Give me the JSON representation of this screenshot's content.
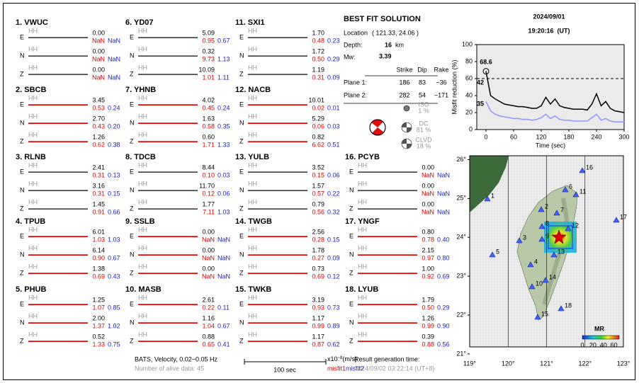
{
  "channel": "HH",
  "components": [
    "E",
    "N",
    "Z"
  ],
  "stations": [
    {
      "label": "1. VWUC",
      "rows": [
        [
          "0.00",
          "NaN",
          "NaN"
        ],
        [
          "0.00",
          "NaN",
          "NaN"
        ],
        [
          "0.00",
          "NaN",
          "NaN"
        ]
      ]
    },
    {
      "label": "2. SBCB",
      "rows": [
        [
          "3.45",
          "0.53",
          "0.24"
        ],
        [
          "2.70",
          "0.43",
          "0.20"
        ],
        [
          "1.26",
          "0.62",
          "0.38"
        ]
      ]
    },
    {
      "label": "3. RLNB",
      "rows": [
        [
          "2.41",
          "0.31",
          "0.13"
        ],
        [
          "3.16",
          "0.31",
          "0.15"
        ],
        [
          "1.45",
          "0.91",
          "0.66"
        ]
      ]
    },
    {
      "label": "4. TPUB",
      "rows": [
        [
          "6.01",
          "1.03",
          "1.03"
        ],
        [
          "6.14",
          "0.90",
          "0.67"
        ],
        [
          "1.38",
          "0.69",
          "0.43"
        ]
      ]
    },
    {
      "label": "5. PHUB",
      "rows": [
        [
          "1.25",
          "1.07",
          "0.85"
        ],
        [
          "2.00",
          "1.37",
          "1.02"
        ],
        [
          "0.52",
          "1.33",
          "0.75"
        ]
      ]
    },
    {
      "label": "6. YD07",
      "rows": [
        [
          "5.09",
          "0.95",
          "0.67"
        ],
        [
          "0.32",
          "9.73",
          "1.13"
        ],
        [
          "10.09",
          "1.01",
          "1.11"
        ]
      ]
    },
    {
      "label": "7. YHNB",
      "rows": [
        [
          "4.02",
          "0.45",
          "0.24"
        ],
        [
          "1.63",
          "0.58",
          "0.35"
        ],
        [
          "0.60",
          "1.71",
          "1.33"
        ]
      ]
    },
    {
      "label": "8. TDCB",
      "rows": [
        [
          "8.44",
          "0.10",
          "0.03"
        ],
        [
          "11.70",
          "0.12",
          "0.06"
        ],
        [
          "1.77",
          "7.11",
          "1.03"
        ]
      ]
    },
    {
      "label": "9. SSLB",
      "rows": [
        [
          "0.00",
          "NaN",
          "NaN"
        ],
        [
          "0.00",
          "NaN",
          "NaN"
        ],
        [
          "0.00",
          "NaN",
          "NaN"
        ]
      ]
    },
    {
      "label": "10. MASB",
      "rows": [
        [
          "2.61",
          "0.22",
          "0.11"
        ],
        [
          "1.16",
          "1.04",
          "0.67"
        ],
        [
          "0.88",
          "0.65",
          "0.41"
        ]
      ]
    },
    {
      "label": "11. SXI1",
      "rows": [
        [
          "1.70",
          "0.48",
          "0.23"
        ],
        [
          "1.72",
          "0.50",
          "0.29"
        ],
        [
          "1.19",
          "0.31",
          "0.09"
        ]
      ]
    },
    {
      "label": "12. NACB",
      "rows": [
        [
          "10.01",
          "0.02",
          "0.01"
        ],
        [
          "5.29",
          "0.06",
          "0.03"
        ],
        [
          "0.82",
          "6.62",
          "0.51"
        ]
      ]
    },
    {
      "label": "13. YULB",
      "rows": [
        [
          "3.52",
          "0.15",
          "0.06"
        ],
        [
          "1.57",
          "0.57",
          "0.22"
        ],
        [
          "0.79",
          "0.56",
          "0.32"
        ]
      ]
    },
    {
      "label": "14. TWGB",
      "rows": [
        [
          "2.56",
          "0.28",
          "0.15"
        ],
        [
          "1.78",
          "0.27",
          "0.09"
        ],
        [
          "0.73",
          "0.69",
          "0.12"
        ]
      ]
    },
    {
      "label": "15. TWKB",
      "rows": [
        [
          "3.19",
          "0.93",
          "0.73"
        ],
        [
          "1.17",
          "0.99",
          "0.89"
        ],
        [
          "1.17",
          "0.87",
          "0.62"
        ]
      ]
    },
    {
      "label": "16. PCYB",
      "rows": [
        [
          "0.00",
          "NaN",
          "NaN"
        ],
        [
          "0.00",
          "NaN",
          "NaN"
        ],
        [
          "0.00",
          "NaN",
          "NaN"
        ]
      ]
    },
    {
      "label": "17. YNGF",
      "rows": [
        [
          "0.80",
          "0.78",
          "0.40"
        ],
        [
          "2.15",
          "0.97",
          "0.80"
        ],
        [
          "1.00",
          "0.92",
          "0.69"
        ]
      ]
    },
    {
      "label": "18. LYUB",
      "rows": [
        [
          "1.79",
          "0.50",
          "0.29"
        ],
        [
          "1.26",
          "0.99",
          "0.90"
        ],
        [
          "0.39",
          "0.88",
          "0.56"
        ]
      ]
    }
  ],
  "solution": {
    "title": "BEST FIT SOLUTION",
    "location_label": "Location",
    "location": "( 121.33, 24.06 )",
    "depth_label": "Depth:",
    "depth": "16",
    "depth_unit": "km",
    "mw_label": "Mw:",
    "mw": "3.39",
    "header": [
      "Strike",
      "Dip",
      "Rake"
    ],
    "planes": [
      {
        "label": "Plane 1:",
        "values": [
          "186",
          "83",
          "−36"
        ]
      },
      {
        "label": "Plane 2:",
        "values": [
          "282",
          "54",
          "−171"
        ]
      }
    ],
    "parts": [
      {
        "label": "ISO",
        "pct": "1 %"
      },
      {
        "label": "DC",
        "pct": "81 %"
      },
      {
        "label": "CLVD",
        "pct": "18 %"
      }
    ]
  },
  "date": "2024/09/01",
  "time": "19:20:16  (UT)",
  "misfit": {
    "type": "line",
    "ylabel": "Misfit reduction (%)",
    "xlabel": "Time (sec)",
    "xlim": [
      -20,
      300
    ],
    "ylim": [
      0,
      100
    ],
    "xticks": [
      0,
      60,
      120,
      180,
      240,
      300
    ],
    "yticks": [
      0,
      20,
      40,
      60,
      80,
      100
    ],
    "threshold": 60,
    "x": [
      0,
      10,
      20,
      30,
      40,
      50,
      60,
      70,
      80,
      90,
      100,
      110,
      120,
      130,
      140,
      150,
      160,
      170,
      180,
      190,
      200,
      210,
      220,
      230,
      240,
      250,
      260,
      270,
      280,
      290,
      300
    ],
    "series": [
      {
        "color": "#000000",
        "values": [
          68.6,
          40,
          36,
          33,
          30,
          29,
          28,
          27,
          27,
          26,
          25,
          25,
          28,
          38,
          30,
          36,
          28,
          26,
          25,
          24,
          24,
          24,
          23,
          30,
          42,
          28,
          33,
          25,
          22,
          21,
          20
        ]
      },
      {
        "color": "#9999ff",
        "values": [
          33,
          22,
          18,
          16,
          15,
          14,
          13,
          13,
          12,
          12,
          11,
          12,
          14,
          18,
          13,
          16,
          12,
          11,
          11,
          10,
          10,
          10,
          10,
          14,
          18,
          11,
          13,
          10,
          9,
          9,
          9
        ]
      }
    ],
    "annotations": [
      {
        "text": "68.6",
        "color": "#e00000"
      },
      {
        "text": "42",
        "color": "#999999"
      },
      {
        "text": "35",
        "color": "#9999ff"
      }
    ]
  },
  "map": {
    "xlim": [
      119,
      123
    ],
    "ylim": [
      21.18,
      26.1
    ],
    "xticks": [
      {
        "value": 119,
        "label": "119°"
      },
      {
        "value": 120,
        "label": "120°"
      },
      {
        "value": 121,
        "label": "121°"
      },
      {
        "value": 122,
        "label": "122°"
      },
      {
        "value": 123,
        "label": "123°"
      }
    ],
    "yticks": [
      {
        "value": 21,
        "label": "21°"
      },
      {
        "value": 22,
        "label": "22°"
      },
      {
        "value": 23,
        "label": "23°"
      },
      {
        "value": 24,
        "label": "24°"
      },
      {
        "value": 25,
        "label": "25°"
      },
      {
        "value": 26,
        "label": "26°"
      }
    ],
    "stations": [
      "1",
      "2",
      "3",
      "4",
      "5",
      "6",
      "7",
      "8",
      "9",
      "10",
      "11",
      "12",
      "13",
      "14",
      "15",
      "16",
      "17",
      "18"
    ],
    "colorbar_title": "MR",
    "colorbar_lim": [
      0,
      70
    ],
    "colorbar_ticks": [
      0,
      20,
      40,
      60
    ]
  },
  "footer": {
    "network": "BATS, Velocity, 0.02−0.05 Hz",
    "alive": "Number of alive data: 45",
    "scale": "100 sec",
    "unit_base": "x10",
    "unit_exp": "−8",
    "unit_suffix": "(m/s)",
    "misfit1": "misfit1",
    "misfit2": "misfit2",
    "gen_label": "Result generation time:",
    "gen_time": "2024/09/02 03:22:14 (UT+8)"
  }
}
